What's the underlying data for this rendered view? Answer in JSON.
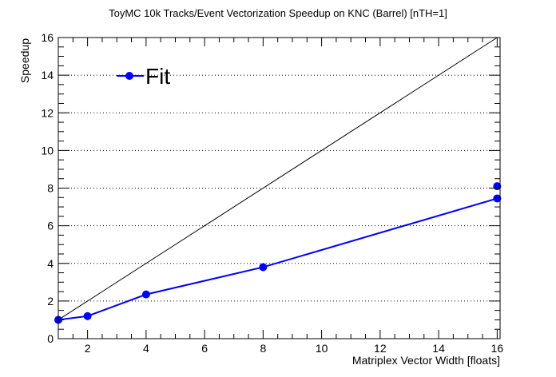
{
  "chart_data": {
    "type": "line",
    "title": "ToyMC 10k Tracks/Event Vectorization Speedup on KNC (Barrel) [nTH=1]",
    "xlabel": "Matriplex Vector Width [floats]",
    "ylabel": "Speedup",
    "xlim": [
      1,
      16.1
    ],
    "ylim": [
      0,
      16
    ],
    "x_ticks": [
      2,
      4,
      6,
      8,
      10,
      12,
      14,
      16
    ],
    "y_ticks": [
      0,
      2,
      4,
      6,
      8,
      10,
      12,
      14,
      16
    ],
    "grid": "horizontal dotted",
    "legend": {
      "position": "top-left",
      "entries": [
        "Fit"
      ]
    },
    "series": [
      {
        "name": "Fit",
        "color": "#0000ff",
        "x": [
          1,
          2,
          4,
          8,
          16
        ],
        "y": [
          1.0,
          1.2,
          2.35,
          3.8,
          7.45
        ]
      }
    ],
    "extra_points": [
      {
        "x": 16,
        "y": 8.1,
        "color": "#0000ff"
      }
    ],
    "reference_line": {
      "from": [
        1,
        1
      ],
      "to": [
        16,
        16
      ],
      "color": "#000000"
    }
  }
}
